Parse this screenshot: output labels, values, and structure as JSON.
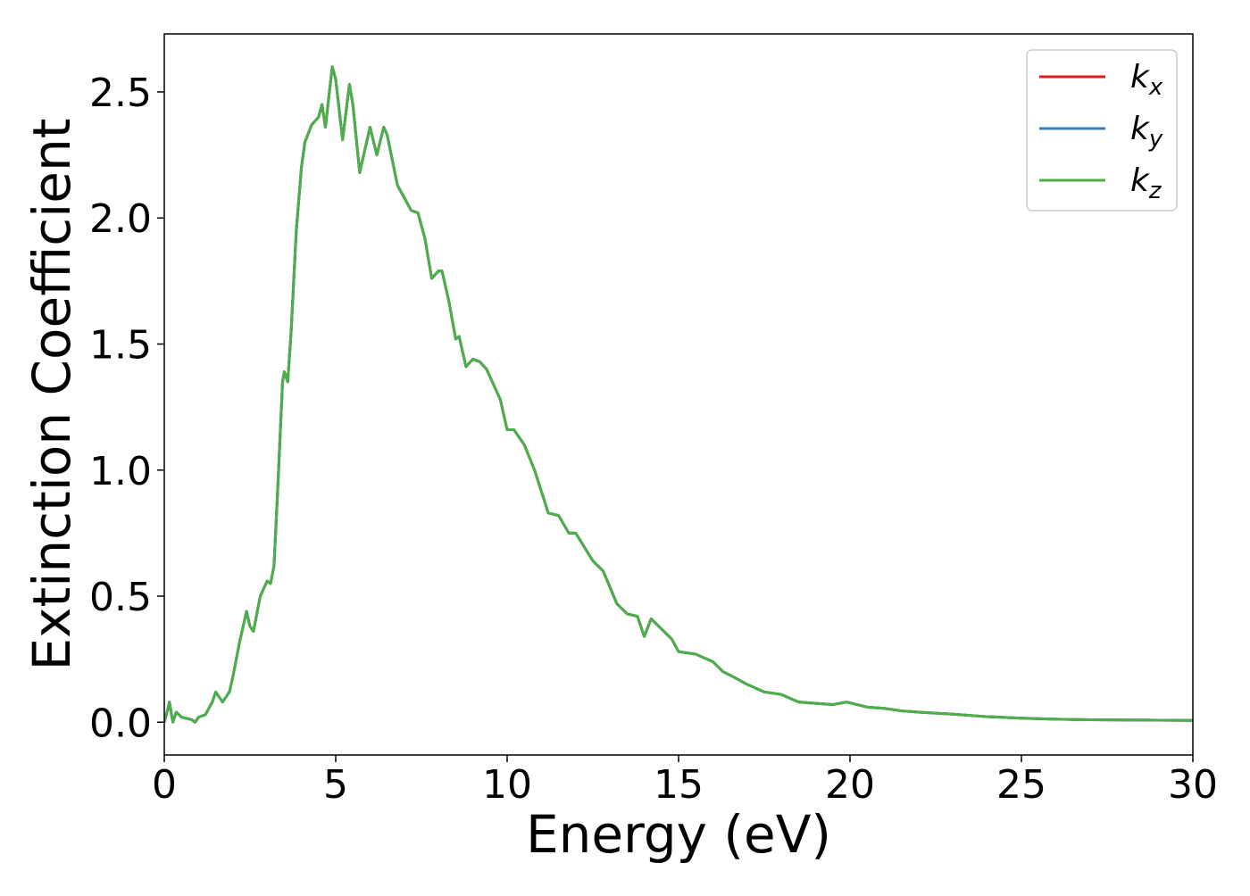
{
  "chart_data": {
    "type": "line",
    "xlabel": "Energy (eV)",
    "ylabel": "Extinction Coefficient",
    "x": [
      0,
      0.1,
      0.15,
      0.25,
      0.35,
      0.5,
      0.8,
      0.9,
      1.0,
      1.2,
      1.4,
      1.5,
      1.7,
      1.9,
      2.0,
      2.2,
      2.4,
      2.5,
      2.6,
      2.8,
      3.0,
      3.1,
      3.2,
      3.3,
      3.45,
      3.5,
      3.6,
      3.7,
      3.85,
      4.0,
      4.1,
      4.3,
      4.5,
      4.6,
      4.7,
      4.9,
      5.0,
      5.2,
      5.4,
      5.5,
      5.7,
      6.0,
      6.2,
      6.4,
      6.5,
      6.8,
      7.0,
      7.2,
      7.4,
      7.6,
      7.8,
      8.0,
      8.1,
      8.3,
      8.5,
      8.6,
      8.8,
      9.0,
      9.2,
      9.4,
      9.8,
      10.0,
      10.2,
      10.5,
      10.8,
      11.2,
      11.5,
      11.8,
      12.0,
      12.5,
      12.8,
      13.2,
      13.5,
      13.8,
      14.0,
      14.2,
      14.5,
      14.8,
      15.0,
      15.5,
      16.0,
      16.3,
      16.6,
      17.0,
      17.5,
      18.0,
      18.5,
      19.0,
      19.5,
      19.9,
      20.5,
      21.0,
      21.5,
      22,
      23,
      24,
      25,
      26,
      27,
      28,
      29,
      30
    ],
    "series": [
      {
        "name": "kx",
        "color": "#e41a1c",
        "values": [
          0.0,
          0.05,
          0.08,
          0.0,
          0.04,
          0.02,
          0.01,
          0.0,
          0.02,
          0.03,
          0.08,
          0.12,
          0.08,
          0.12,
          0.18,
          0.32,
          0.44,
          0.38,
          0.36,
          0.5,
          0.56,
          0.55,
          0.62,
          0.9,
          1.35,
          1.39,
          1.35,
          1.55,
          1.95,
          2.2,
          2.3,
          2.37,
          2.4,
          2.45,
          2.36,
          2.6,
          2.55,
          2.31,
          2.53,
          2.45,
          2.18,
          2.36,
          2.25,
          2.36,
          2.33,
          2.13,
          2.08,
          2.03,
          2.02,
          1.92,
          1.76,
          1.79,
          1.79,
          1.67,
          1.52,
          1.53,
          1.41,
          1.44,
          1.43,
          1.4,
          1.28,
          1.16,
          1.16,
          1.1,
          1.0,
          0.83,
          0.82,
          0.75,
          0.75,
          0.64,
          0.6,
          0.47,
          0.43,
          0.42,
          0.34,
          0.41,
          0.37,
          0.33,
          0.28,
          0.27,
          0.24,
          0.2,
          0.18,
          0.15,
          0.12,
          0.11,
          0.08,
          0.075,
          0.07,
          0.08,
          0.06,
          0.055,
          0.045,
          0.04,
          0.032,
          0.022,
          0.016,
          0.012,
          0.01,
          0.009,
          0.008,
          0.007
        ]
      },
      {
        "name": "ky",
        "color": "#377eb8",
        "values": [
          0.0,
          0.05,
          0.08,
          0.0,
          0.04,
          0.02,
          0.01,
          0.0,
          0.02,
          0.03,
          0.08,
          0.12,
          0.08,
          0.12,
          0.18,
          0.32,
          0.44,
          0.38,
          0.36,
          0.5,
          0.56,
          0.55,
          0.62,
          0.9,
          1.35,
          1.39,
          1.35,
          1.55,
          1.95,
          2.2,
          2.3,
          2.37,
          2.4,
          2.45,
          2.36,
          2.6,
          2.55,
          2.31,
          2.53,
          2.45,
          2.18,
          2.36,
          2.25,
          2.36,
          2.33,
          2.13,
          2.08,
          2.03,
          2.02,
          1.92,
          1.76,
          1.79,
          1.79,
          1.67,
          1.52,
          1.53,
          1.41,
          1.44,
          1.43,
          1.4,
          1.28,
          1.16,
          1.16,
          1.1,
          1.0,
          0.83,
          0.82,
          0.75,
          0.75,
          0.64,
          0.6,
          0.47,
          0.43,
          0.42,
          0.34,
          0.41,
          0.37,
          0.33,
          0.28,
          0.27,
          0.24,
          0.2,
          0.18,
          0.15,
          0.12,
          0.11,
          0.08,
          0.075,
          0.07,
          0.08,
          0.06,
          0.055,
          0.045,
          0.04,
          0.032,
          0.022,
          0.016,
          0.012,
          0.01,
          0.009,
          0.008,
          0.007
        ]
      },
      {
        "name": "kz",
        "color": "#4daf4a",
        "values": [
          0.0,
          0.05,
          0.08,
          0.0,
          0.04,
          0.02,
          0.01,
          0.0,
          0.02,
          0.03,
          0.08,
          0.12,
          0.08,
          0.12,
          0.18,
          0.32,
          0.44,
          0.38,
          0.36,
          0.5,
          0.56,
          0.55,
          0.62,
          0.9,
          1.35,
          1.39,
          1.35,
          1.55,
          1.95,
          2.2,
          2.3,
          2.37,
          2.4,
          2.45,
          2.36,
          2.6,
          2.55,
          2.31,
          2.53,
          2.45,
          2.18,
          2.36,
          2.25,
          2.36,
          2.33,
          2.13,
          2.08,
          2.03,
          2.02,
          1.92,
          1.76,
          1.79,
          1.79,
          1.67,
          1.52,
          1.53,
          1.41,
          1.44,
          1.43,
          1.4,
          1.28,
          1.16,
          1.16,
          1.1,
          1.0,
          0.83,
          0.82,
          0.75,
          0.75,
          0.64,
          0.6,
          0.47,
          0.43,
          0.42,
          0.34,
          0.41,
          0.37,
          0.33,
          0.28,
          0.27,
          0.24,
          0.2,
          0.18,
          0.15,
          0.12,
          0.11,
          0.08,
          0.075,
          0.07,
          0.08,
          0.06,
          0.055,
          0.045,
          0.04,
          0.032,
          0.022,
          0.016,
          0.012,
          0.01,
          0.009,
          0.008,
          0.007
        ]
      }
    ],
    "xlim": [
      0,
      30
    ],
    "xticks": [
      0,
      5,
      10,
      15,
      20,
      25,
      30
    ],
    "ylim": [
      -0.13,
      2.73
    ],
    "yticks": [
      {
        "value": 0,
        "label": "0.0"
      },
      0.5,
      {
        "value": 1,
        "label": "1.0"
      },
      1.5,
      {
        "value": 2,
        "label": "2.0"
      },
      2.5
    ],
    "legend": "upper right"
  }
}
